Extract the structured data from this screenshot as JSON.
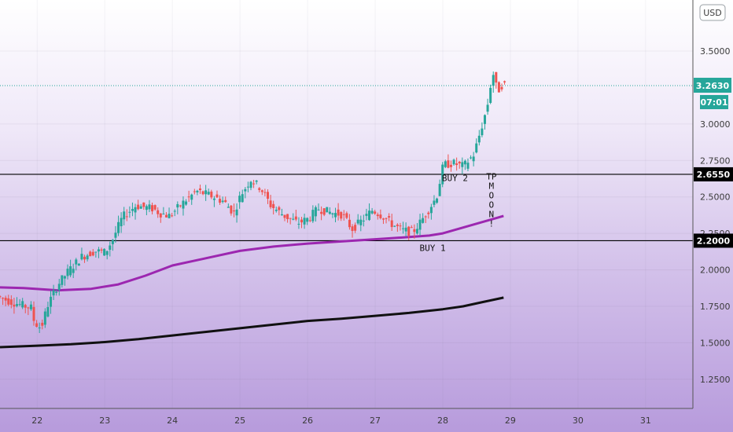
{
  "chart_data": {
    "type": "candlestick",
    "currency": "USD",
    "x_ticks": [
      "22",
      "23",
      "24",
      "25",
      "26",
      "27",
      "28",
      "29",
      "30",
      "31"
    ],
    "y_ticks": [
      {
        "value": 3.5,
        "label": "3.5000"
      },
      {
        "value": 3.0,
        "label": "3.0000"
      },
      {
        "value": 2.75,
        "label": "2.7500"
      },
      {
        "value": 2.5,
        "label": "2.5000"
      },
      {
        "value": 2.25,
        "label": "2.2500"
      },
      {
        "value": 2.0,
        "label": "2.0000"
      },
      {
        "value": 1.75,
        "label": "1.7500"
      },
      {
        "value": 1.5,
        "label": "1.5000"
      },
      {
        "value": 1.25,
        "label": "1.2500"
      }
    ],
    "ylim": [
      1.05,
      3.85
    ],
    "xlim": [
      21.45,
      31.7
    ],
    "current_price": {
      "value": 3.263,
      "label": "3.2630",
      "countdown": "07:01"
    },
    "horizontal_lines": [
      {
        "value": 2.655,
        "label": "2.6550"
      },
      {
        "value": 2.2,
        "label": "2.2000"
      }
    ],
    "annotations": [
      {
        "text": "BUY 2",
        "x": 28.18,
        "y": 2.61
      },
      {
        "text": "BUY 1",
        "x": 27.85,
        "y": 2.13
      }
    ],
    "vertical_text": {
      "text": "TPMOON!",
      "x": 28.72,
      "y_top": 2.62
    },
    "moving_averages": [
      {
        "color": "#9c27b0",
        "points": [
          [
            21.45,
            1.88
          ],
          [
            21.8,
            1.875
          ],
          [
            22.3,
            1.86
          ],
          [
            22.8,
            1.87
          ],
          [
            23.2,
            1.9
          ],
          [
            23.6,
            1.96
          ],
          [
            24.0,
            2.03
          ],
          [
            24.5,
            2.08
          ],
          [
            25.0,
            2.13
          ],
          [
            25.5,
            2.16
          ],
          [
            26.0,
            2.18
          ],
          [
            26.5,
            2.195
          ],
          [
            27.0,
            2.21
          ],
          [
            27.5,
            2.225
          ],
          [
            27.8,
            2.235
          ],
          [
            28.0,
            2.25
          ],
          [
            28.3,
            2.29
          ],
          [
            28.6,
            2.33
          ],
          [
            28.9,
            2.37
          ]
        ]
      },
      {
        "color": "#111111",
        "points": [
          [
            21.45,
            1.47
          ],
          [
            22.0,
            1.48
          ],
          [
            22.5,
            1.49
          ],
          [
            23.0,
            1.505
          ],
          [
            23.5,
            1.525
          ],
          [
            24.0,
            1.55
          ],
          [
            24.5,
            1.575
          ],
          [
            25.0,
            1.6
          ],
          [
            25.5,
            1.625
          ],
          [
            26.0,
            1.65
          ],
          [
            26.5,
            1.665
          ],
          [
            27.0,
            1.685
          ],
          [
            27.5,
            1.705
          ],
          [
            28.0,
            1.73
          ],
          [
            28.3,
            1.75
          ],
          [
            28.6,
            1.78
          ],
          [
            28.9,
            1.81
          ]
        ]
      }
    ],
    "candle_anchors": [
      [
        21.45,
        1.82
      ],
      [
        21.6,
        1.79
      ],
      [
        21.8,
        1.76
      ],
      [
        21.95,
        1.74
      ],
      [
        22.0,
        1.64
      ],
      [
        22.1,
        1.6
      ],
      [
        22.2,
        1.76
      ],
      [
        22.35,
        1.9
      ],
      [
        22.5,
        1.99
      ],
      [
        22.7,
        2.09
      ],
      [
        22.9,
        2.13
      ],
      [
        23.05,
        2.12
      ],
      [
        23.15,
        2.2
      ],
      [
        23.3,
        2.36
      ],
      [
        23.5,
        2.44
      ],
      [
        23.75,
        2.42
      ],
      [
        23.85,
        2.39
      ],
      [
        24.0,
        2.37
      ],
      [
        24.2,
        2.46
      ],
      [
        24.4,
        2.54
      ],
      [
        24.6,
        2.51
      ],
      [
        24.8,
        2.47
      ],
      [
        24.95,
        2.39
      ],
      [
        25.05,
        2.51
      ],
      [
        25.2,
        2.62
      ],
      [
        25.35,
        2.56
      ],
      [
        25.5,
        2.44
      ],
      [
        25.7,
        2.37
      ],
      [
        25.9,
        2.32
      ],
      [
        26.05,
        2.35
      ],
      [
        26.2,
        2.42
      ],
      [
        26.4,
        2.39
      ],
      [
        26.55,
        2.38
      ],
      [
        26.7,
        2.28
      ],
      [
        26.85,
        2.34
      ],
      [
        27.0,
        2.41
      ],
      [
        27.15,
        2.37
      ],
      [
        27.3,
        2.31
      ],
      [
        27.45,
        2.27
      ],
      [
        27.6,
        2.26
      ],
      [
        27.7,
        2.32
      ],
      [
        27.8,
        2.39
      ],
      [
        27.95,
        2.5
      ],
      [
        28.05,
        2.72
      ],
      [
        28.2,
        2.73
      ],
      [
        28.35,
        2.71
      ],
      [
        28.5,
        2.79
      ],
      [
        28.6,
        2.95
      ],
      [
        28.7,
        3.12
      ],
      [
        28.78,
        3.36
      ],
      [
        28.85,
        3.22
      ],
      [
        28.92,
        3.27
      ]
    ],
    "candle_series": {
      "color_up": "#26a69a",
      "color_down": "#ef5350",
      "x_start": 21.45,
      "x_end": 28.92,
      "step": 0.0417
    }
  }
}
